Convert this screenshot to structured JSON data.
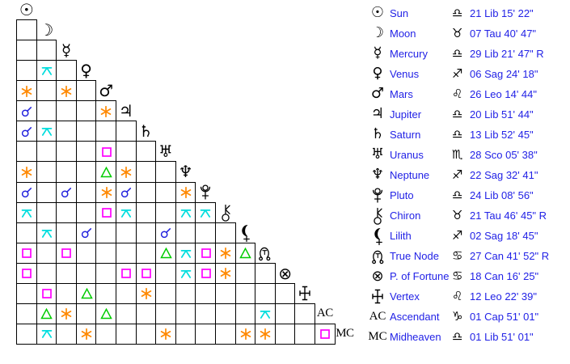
{
  "colors": {
    "background": "#ffffff",
    "grid_line": "#000000",
    "glyph": "#000000",
    "legend_text": "#2222e6",
    "aspect_conjunction": "#2222dd",
    "aspect_sextile": "#ff8800",
    "aspect_square": "#ff00ff",
    "aspect_trine": "#00cc00",
    "aspect_quincunx": "#00dddd"
  },
  "planets": [
    {
      "id": "sun",
      "name": "Sun",
      "glyph_icon": "sun-icon",
      "sign": "libra",
      "sign_icon": "libra-icon",
      "position": "21 Lib 15' 22\""
    },
    {
      "id": "moon",
      "name": "Moon",
      "glyph_icon": "moon-icon",
      "sign": "taurus",
      "sign_icon": "taurus-icon",
      "position": "07 Tau 40' 47\""
    },
    {
      "id": "mercury",
      "name": "Mercury",
      "glyph_icon": "mercury-icon",
      "sign": "libra",
      "sign_icon": "libra-icon",
      "position": "29 Lib 21' 47\" R"
    },
    {
      "id": "venus",
      "name": "Venus",
      "glyph_icon": "venus-icon",
      "sign": "sagittarius",
      "sign_icon": "sagittarius-icon",
      "position": "06 Sag 24' 18\""
    },
    {
      "id": "mars",
      "name": "Mars",
      "glyph_icon": "mars-icon",
      "sign": "leo",
      "sign_icon": "leo-icon",
      "position": "26 Leo 14' 44\""
    },
    {
      "id": "jupiter",
      "name": "Jupiter",
      "glyph_icon": "jupiter-icon",
      "sign": "libra",
      "sign_icon": "libra-icon",
      "position": "20 Lib 51' 44\""
    },
    {
      "id": "saturn",
      "name": "Saturn",
      "glyph_icon": "saturn-icon",
      "sign": "libra",
      "sign_icon": "libra-icon",
      "position": "13 Lib 52' 45\""
    },
    {
      "id": "uranus",
      "name": "Uranus",
      "glyph_icon": "uranus-icon",
      "sign": "scorpio",
      "sign_icon": "scorpio-icon",
      "position": "28 Sco 05' 38\""
    },
    {
      "id": "neptune",
      "name": "Neptune",
      "glyph_icon": "neptune-icon",
      "sign": "sagittarius",
      "sign_icon": "sagittarius-icon",
      "position": "22 Sag 32' 41\""
    },
    {
      "id": "pluto",
      "name": "Pluto",
      "glyph_icon": "pluto-icon",
      "sign": "libra",
      "sign_icon": "libra-icon",
      "position": "24 Lib 08' 56\""
    },
    {
      "id": "chiron",
      "name": "Chiron",
      "glyph_icon": "chiron-icon",
      "sign": "taurus",
      "sign_icon": "taurus-icon",
      "position": "21 Tau 46' 45\" R"
    },
    {
      "id": "lilith",
      "name": "Lilith",
      "glyph_icon": "lilith-icon",
      "sign": "sagittarius",
      "sign_icon": "sagittarius-icon",
      "position": "02 Sag 18' 45\""
    },
    {
      "id": "true-node",
      "name": "True Node",
      "glyph_icon": "true-node-icon",
      "sign": "cancer",
      "sign_icon": "cancer-icon",
      "position": "27 Can 41' 52\" R"
    },
    {
      "id": "p-of-fortune",
      "name": "P. of Fortune",
      "glyph_icon": "part-of-fortune-icon",
      "sign": "cancer",
      "sign_icon": "cancer-icon",
      "position": "18 Can 16' 25\""
    },
    {
      "id": "vertex",
      "name": "Vertex",
      "glyph_icon": "vertex-icon",
      "sign": "leo",
      "sign_icon": "leo-icon",
      "position": "12 Leo 22' 39\""
    },
    {
      "id": "ascendant",
      "name": "Ascendant",
      "glyph_icon": "ascendant-icon",
      "grid_label": "AC",
      "sign": "capricorn",
      "sign_icon": "capricorn-icon",
      "position": "01 Cap 51' 01\""
    },
    {
      "id": "midheaven",
      "name": "Midheaven",
      "glyph_icon": "midheaven-icon",
      "grid_label": "MC",
      "sign": "libra",
      "sign_icon": "libra-icon",
      "position": "01 Lib 51' 01\""
    }
  ],
  "aspect_grid": {
    "rows": [
      {
        "planet": "sun",
        "aspects": []
      },
      {
        "planet": "moon",
        "aspects": []
      },
      {
        "planet": "mercury",
        "aspects": []
      },
      {
        "planet": "venus",
        "aspects": [
          {
            "col": 2,
            "aspect": "quincunx"
          }
        ]
      },
      {
        "planet": "mars",
        "aspects": [
          {
            "col": 1,
            "aspect": "sextile"
          },
          {
            "col": 3,
            "aspect": "sextile"
          }
        ]
      },
      {
        "planet": "jupiter",
        "aspects": [
          {
            "col": 1,
            "aspect": "conjunction"
          },
          {
            "col": 5,
            "aspect": "sextile"
          }
        ]
      },
      {
        "planet": "saturn",
        "aspects": [
          {
            "col": 1,
            "aspect": "conjunction"
          },
          {
            "col": 2,
            "aspect": "quincunx"
          }
        ]
      },
      {
        "planet": "uranus",
        "aspects": [
          {
            "col": 5,
            "aspect": "square"
          }
        ]
      },
      {
        "planet": "neptune",
        "aspects": [
          {
            "col": 1,
            "aspect": "sextile"
          },
          {
            "col": 5,
            "aspect": "trine"
          },
          {
            "col": 6,
            "aspect": "sextile"
          }
        ]
      },
      {
        "planet": "pluto",
        "aspects": [
          {
            "col": 1,
            "aspect": "conjunction"
          },
          {
            "col": 3,
            "aspect": "conjunction"
          },
          {
            "col": 5,
            "aspect": "sextile"
          },
          {
            "col": 6,
            "aspect": "conjunction"
          },
          {
            "col": 9,
            "aspect": "sextile"
          }
        ]
      },
      {
        "planet": "chiron",
        "aspects": [
          {
            "col": 1,
            "aspect": "quincunx"
          },
          {
            "col": 5,
            "aspect": "square"
          },
          {
            "col": 6,
            "aspect": "quincunx"
          },
          {
            "col": 9,
            "aspect": "quincunx"
          },
          {
            "col": 10,
            "aspect": "quincunx"
          }
        ]
      },
      {
        "planet": "lilith",
        "aspects": [
          {
            "col": 2,
            "aspect": "quincunx"
          },
          {
            "col": 4,
            "aspect": "conjunction"
          },
          {
            "col": 8,
            "aspect": "conjunction"
          }
        ]
      },
      {
        "planet": "true-node",
        "aspects": [
          {
            "col": 1,
            "aspect": "square"
          },
          {
            "col": 3,
            "aspect": "square"
          },
          {
            "col": 8,
            "aspect": "trine"
          },
          {
            "col": 9,
            "aspect": "quincunx"
          },
          {
            "col": 10,
            "aspect": "square"
          },
          {
            "col": 11,
            "aspect": "sextile"
          },
          {
            "col": 12,
            "aspect": "trine"
          }
        ]
      },
      {
        "planet": "p-of-fortune",
        "aspects": [
          {
            "col": 1,
            "aspect": "square"
          },
          {
            "col": 6,
            "aspect": "square"
          },
          {
            "col": 7,
            "aspect": "square"
          },
          {
            "col": 9,
            "aspect": "quincunx"
          },
          {
            "col": 10,
            "aspect": "square"
          },
          {
            "col": 11,
            "aspect": "sextile"
          }
        ]
      },
      {
        "planet": "vertex",
        "aspects": [
          {
            "col": 2,
            "aspect": "square"
          },
          {
            "col": 4,
            "aspect": "trine"
          },
          {
            "col": 7,
            "aspect": "sextile"
          }
        ]
      },
      {
        "planet": "ascendant",
        "aspects": [
          {
            "col": 2,
            "aspect": "trine"
          },
          {
            "col": 3,
            "aspect": "sextile"
          },
          {
            "col": 5,
            "aspect": "trine"
          },
          {
            "col": 13,
            "aspect": "quincunx"
          }
        ]
      },
      {
        "planet": "midheaven",
        "aspects": [
          {
            "col": 2,
            "aspect": "quincunx"
          },
          {
            "col": 4,
            "aspect": "sextile"
          },
          {
            "col": 8,
            "aspect": "sextile"
          },
          {
            "col": 12,
            "aspect": "sextile"
          },
          {
            "col": 13,
            "aspect": "sextile"
          },
          {
            "col": 16,
            "aspect": "square"
          }
        ]
      }
    ]
  }
}
